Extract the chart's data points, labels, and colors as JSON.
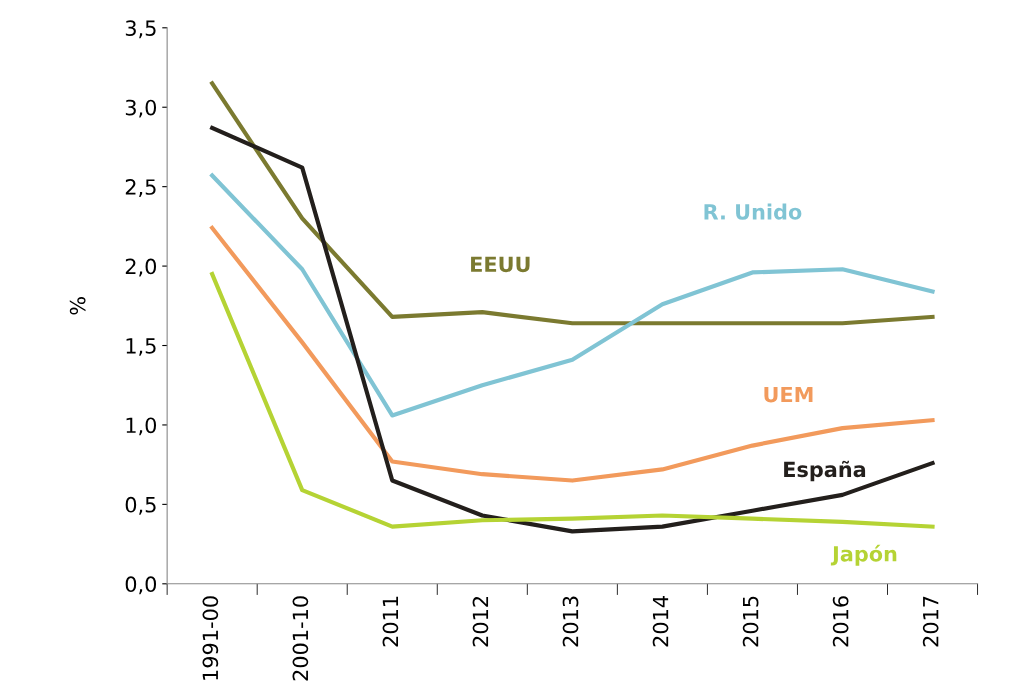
{
  "chart_data": {
    "type": "line",
    "ylabel": "%",
    "categories": [
      "1991-00",
      "2001-10",
      "2011",
      "2012",
      "2013",
      "2014",
      "2015",
      "2016",
      "2017"
    ],
    "series": [
      {
        "name": "EEUU",
        "color": "#7b7a30",
        "values": [
          3.15,
          2.3,
          1.68,
          1.71,
          1.64,
          1.64,
          1.64,
          1.64,
          1.68
        ]
      },
      {
        "name": "R. Unido",
        "color": "#80c4d4",
        "values": [
          2.57,
          1.98,
          1.06,
          1.25,
          1.41,
          1.76,
          1.96,
          1.98,
          1.84
        ]
      },
      {
        "name": "UEM",
        "color": "#f29a5c",
        "values": [
          2.24,
          1.52,
          0.77,
          0.69,
          0.65,
          0.72,
          0.87,
          0.98,
          1.03
        ]
      },
      {
        "name": "España",
        "color": "#231f1c",
        "values": [
          2.87,
          2.62,
          0.65,
          0.43,
          0.33,
          0.36,
          0.46,
          0.56,
          0.76
        ]
      },
      {
        "name": "Japón",
        "color": "#b5d334",
        "values": [
          1.95,
          0.59,
          0.36,
          0.4,
          0.41,
          0.43,
          0.41,
          0.39,
          0.36
        ]
      }
    ],
    "ylim": [
      0,
      3.5
    ],
    "yticks": [
      {
        "value": 0,
        "label": "0,0"
      },
      {
        "value": 0.5,
        "label": "0,5"
      },
      {
        "value": 1,
        "label": "1,0"
      },
      {
        "value": 1.5,
        "label": "1,5"
      },
      {
        "value": 2,
        "label": "2,0"
      },
      {
        "value": 2.5,
        "label": "2,5"
      },
      {
        "value": 3,
        "label": "3,0"
      },
      {
        "value": 3.5,
        "label": "3,5"
      }
    ],
    "grid": false,
    "legend": false,
    "marker": "none",
    "line_style": "solid"
  }
}
